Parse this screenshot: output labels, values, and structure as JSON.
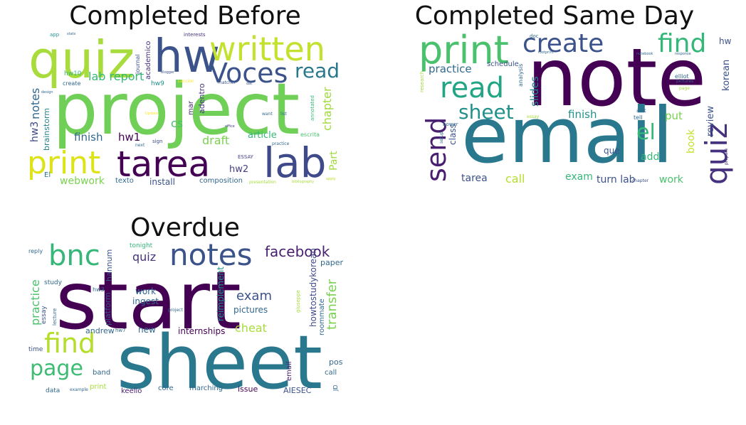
{
  "panels": [
    {
      "title": "Completed Before",
      "words": [
        {
          "text": "project",
          "color": "#6fcf57"
        },
        {
          "text": "quiz",
          "color": "#a8dc3c"
        },
        {
          "text": "hw",
          "color": "#3b528b"
        },
        {
          "text": "written",
          "color": "#c3e22f"
        },
        {
          "text": "Voces",
          "color": "#3b528b"
        },
        {
          "text": "read",
          "color": "#2a788e"
        },
        {
          "text": "lab",
          "color": "#3e4a89"
        },
        {
          "text": "tarea",
          "color": "#440154"
        },
        {
          "text": "print",
          "color": "#dde318"
        },
        {
          "text": "lab report",
          "color": "#35b779"
        },
        {
          "text": "notes",
          "color": "#31688e"
        },
        {
          "text": "brainstorm",
          "color": "#25858e"
        },
        {
          "text": "hw3",
          "color": "#3e4a89"
        },
        {
          "text": "finish",
          "color": "#31688e"
        },
        {
          "text": "hw1",
          "color": "#440154"
        },
        {
          "text": "cs",
          "color": "#4ac16d"
        },
        {
          "text": "draft",
          "color": "#7ad151"
        },
        {
          "text": "article",
          "color": "#35b779"
        },
        {
          "text": "chapter",
          "color": "#9fda3a"
        },
        {
          "text": "Part",
          "color": "#9fda3a"
        },
        {
          "text": "hw2",
          "color": "#433e85"
        },
        {
          "text": "webwork",
          "color": "#7ad151"
        },
        {
          "text": "install",
          "color": "#3b528b"
        },
        {
          "text": "texto",
          "color": "#31688e"
        },
        {
          "text": "composition",
          "color": "#31688e"
        },
        {
          "text": "mar",
          "color": "#481f70"
        },
        {
          "text": "adentro",
          "color": "#46327e"
        },
        {
          "text": "academico",
          "color": "#46327e"
        },
        {
          "text": "journal",
          "color": "#3b528b"
        },
        {
          "text": "hw10",
          "color": "#35b779"
        },
        {
          "text": "hw9",
          "color": "#21918c"
        },
        {
          "text": "create",
          "color": "#31688e"
        },
        {
          "text": "annotated",
          "color": "#35b779"
        },
        {
          "text": "sign",
          "color": "#3e4a89"
        },
        {
          "text": "ESSAY",
          "color": "#433e85"
        },
        {
          "text": "presentation",
          "color": "#a8dc3c"
        },
        {
          "text": "escrita",
          "color": "#4ac16d"
        },
        {
          "text": "interests",
          "color": "#46327e"
        },
        {
          "text": "app",
          "color": "#21918c"
        },
        {
          "text": "stats",
          "color": "#31688e"
        },
        {
          "text": "next",
          "color": "#31688e"
        },
        {
          "text": "matcher",
          "color": "#3b528b"
        },
        {
          "text": "practice",
          "color": "#31688e"
        },
        {
          "text": "apply",
          "color": "#b5de2b"
        },
        {
          "text": "El",
          "color": "#2a788e"
        },
        {
          "text": "bibliography",
          "color": "#a8dc3c"
        },
        {
          "text": "want",
          "color": "#31688e"
        },
        {
          "text": "list",
          "color": "#31688e"
        },
        {
          "text": "Leccion",
          "color": "#fde725"
        },
        {
          "text": "dat",
          "color": "#3b528b"
        },
        {
          "text": "design",
          "color": "#31688e"
        },
        {
          "text": "office",
          "color": "#433e85"
        },
        {
          "text": "blogger",
          "color": "#3b528b"
        },
        {
          "text": "Update",
          "color": "#fde725"
        }
      ]
    },
    {
      "title": "Completed Same Day",
      "words": [
        {
          "text": "note",
          "color": "#440154"
        },
        {
          "text": "email",
          "color": "#2a788e"
        },
        {
          "text": "print",
          "color": "#4ac16d"
        },
        {
          "text": "create",
          "color": "#3b528b"
        },
        {
          "text": "find",
          "color": "#35b779"
        },
        {
          "text": "read",
          "color": "#21a585"
        },
        {
          "text": "sheet",
          "color": "#21918c"
        },
        {
          "text": "send",
          "color": "#481f70"
        },
        {
          "text": "quiz",
          "color": "#46327e"
        },
        {
          "text": "el",
          "color": "#35b779"
        },
        {
          "text": "practice",
          "color": "#31688e"
        },
        {
          "text": "slides",
          "color": "#25858e"
        },
        {
          "text": "finish",
          "color": "#21918c"
        },
        {
          "text": "put",
          "color": "#7ad151"
        },
        {
          "text": "review",
          "color": "#3b528b"
        },
        {
          "text": "korean",
          "color": "#3b528b"
        },
        {
          "text": "book",
          "color": "#c3e22f"
        },
        {
          "text": "class",
          "color": "#3b528b"
        },
        {
          "text": "que",
          "color": "#3b528b"
        },
        {
          "text": "add",
          "color": "#35b779"
        },
        {
          "text": "tarea",
          "color": "#3b528b"
        },
        {
          "text": "call",
          "color": "#b5de2b"
        },
        {
          "text": "exam",
          "color": "#35b779"
        },
        {
          "text": "turn lab",
          "color": "#3b528b"
        },
        {
          "text": "work",
          "color": "#4ac16d"
        },
        {
          "text": "schedule",
          "color": "#3b528b"
        },
        {
          "text": "hw",
          "color": "#3b528b"
        },
        {
          "text": "doc",
          "color": "#31688e"
        },
        {
          "text": "analysis",
          "color": "#31688e"
        },
        {
          "text": "research",
          "color": "#9fda3a"
        },
        {
          "text": "elliot",
          "color": "#31688e"
        },
        {
          "text": "page",
          "color": "#a8dc3c"
        },
        {
          "text": "pictures",
          "color": "#31688e"
        },
        {
          "text": "ask",
          "color": "#31688e"
        },
        {
          "text": "tell",
          "color": "#31688e"
        },
        {
          "text": "bower",
          "color": "#31688e"
        },
        {
          "text": "chapter",
          "color": "#3b528b"
        },
        {
          "text": "prepare",
          "color": "#46327e"
        },
        {
          "text": "setup",
          "color": "#31688e"
        },
        {
          "text": "essay",
          "color": "#a8dc3c"
        },
        {
          "text": "response",
          "color": "#31688e"
        },
        {
          "text": "notebook",
          "color": "#31688e"
        },
        {
          "text": "footprint",
          "color": "#31688e"
        }
      ]
    },
    {
      "title": "Overdue",
      "words": [
        {
          "text": "start",
          "color": "#440154"
        },
        {
          "text": "sheet",
          "color": "#2a788e"
        },
        {
          "text": "bnc",
          "color": "#35b779"
        },
        {
          "text": "notes",
          "color": "#3b528b"
        },
        {
          "text": "facebook",
          "color": "#481f70"
        },
        {
          "text": "quiz",
          "color": "#46327e"
        },
        {
          "text": "find",
          "color": "#b5de2b"
        },
        {
          "text": "page",
          "color": "#3dbc74"
        },
        {
          "text": "practice",
          "color": "#4ac16d"
        },
        {
          "text": "exam",
          "color": "#3b528b"
        },
        {
          "text": "cheat",
          "color": "#a8dc3c"
        },
        {
          "text": "transfer",
          "color": "#7ad151"
        },
        {
          "text": "howtostudykorean",
          "color": "#3e4a89"
        },
        {
          "text": "roommate",
          "color": "#31688e"
        },
        {
          "text": "reimplement",
          "color": "#21918c"
        },
        {
          "text": "pictures",
          "color": "#31688e"
        },
        {
          "text": "ingest",
          "color": "#31688e"
        },
        {
          "text": "work",
          "color": "#31688e"
        },
        {
          "text": "new",
          "color": "#31688e"
        },
        {
          "text": "internships",
          "color": "#440154"
        },
        {
          "text": "andrew",
          "color": "#31688e"
        },
        {
          "text": "platform",
          "color": "#3b528b"
        },
        {
          "text": "hannum",
          "color": "#3b528b"
        },
        {
          "text": "tonight",
          "color": "#35b779"
        },
        {
          "text": "paper",
          "color": "#31688e"
        },
        {
          "text": "post",
          "color": "#31688e"
        },
        {
          "text": "call",
          "color": "#31688e"
        },
        {
          "text": "email",
          "color": "#481f70"
        },
        {
          "text": "issue",
          "color": "#440154"
        },
        {
          "text": "marching",
          "color": "#31688e"
        },
        {
          "text": "AIESEC",
          "color": "#3b528b"
        },
        {
          "text": "core",
          "color": "#31688e"
        },
        {
          "text": "keelio",
          "color": "#481f70"
        },
        {
          "text": "print",
          "color": "#a8dc3c"
        },
        {
          "text": "band",
          "color": "#31688e"
        },
        {
          "text": "data",
          "color": "#31688e"
        },
        {
          "text": "essay",
          "color": "#3b528b"
        },
        {
          "text": "study",
          "color": "#31688e"
        },
        {
          "text": "time",
          "color": "#3b528b"
        },
        {
          "text": "reply",
          "color": "#31688e"
        },
        {
          "text": "lecture",
          "color": "#31688e"
        },
        {
          "text": "JD",
          "color": "#31688e"
        },
        {
          "text": "hw3",
          "color": "#31688e"
        },
        {
          "text": "hw7",
          "color": "#31688e"
        },
        {
          "text": "example",
          "color": "#31688e"
        },
        {
          "text": "project",
          "color": "#31688e"
        },
        {
          "text": "giuseppe",
          "color": "#a8dc3c"
        }
      ]
    }
  ]
}
